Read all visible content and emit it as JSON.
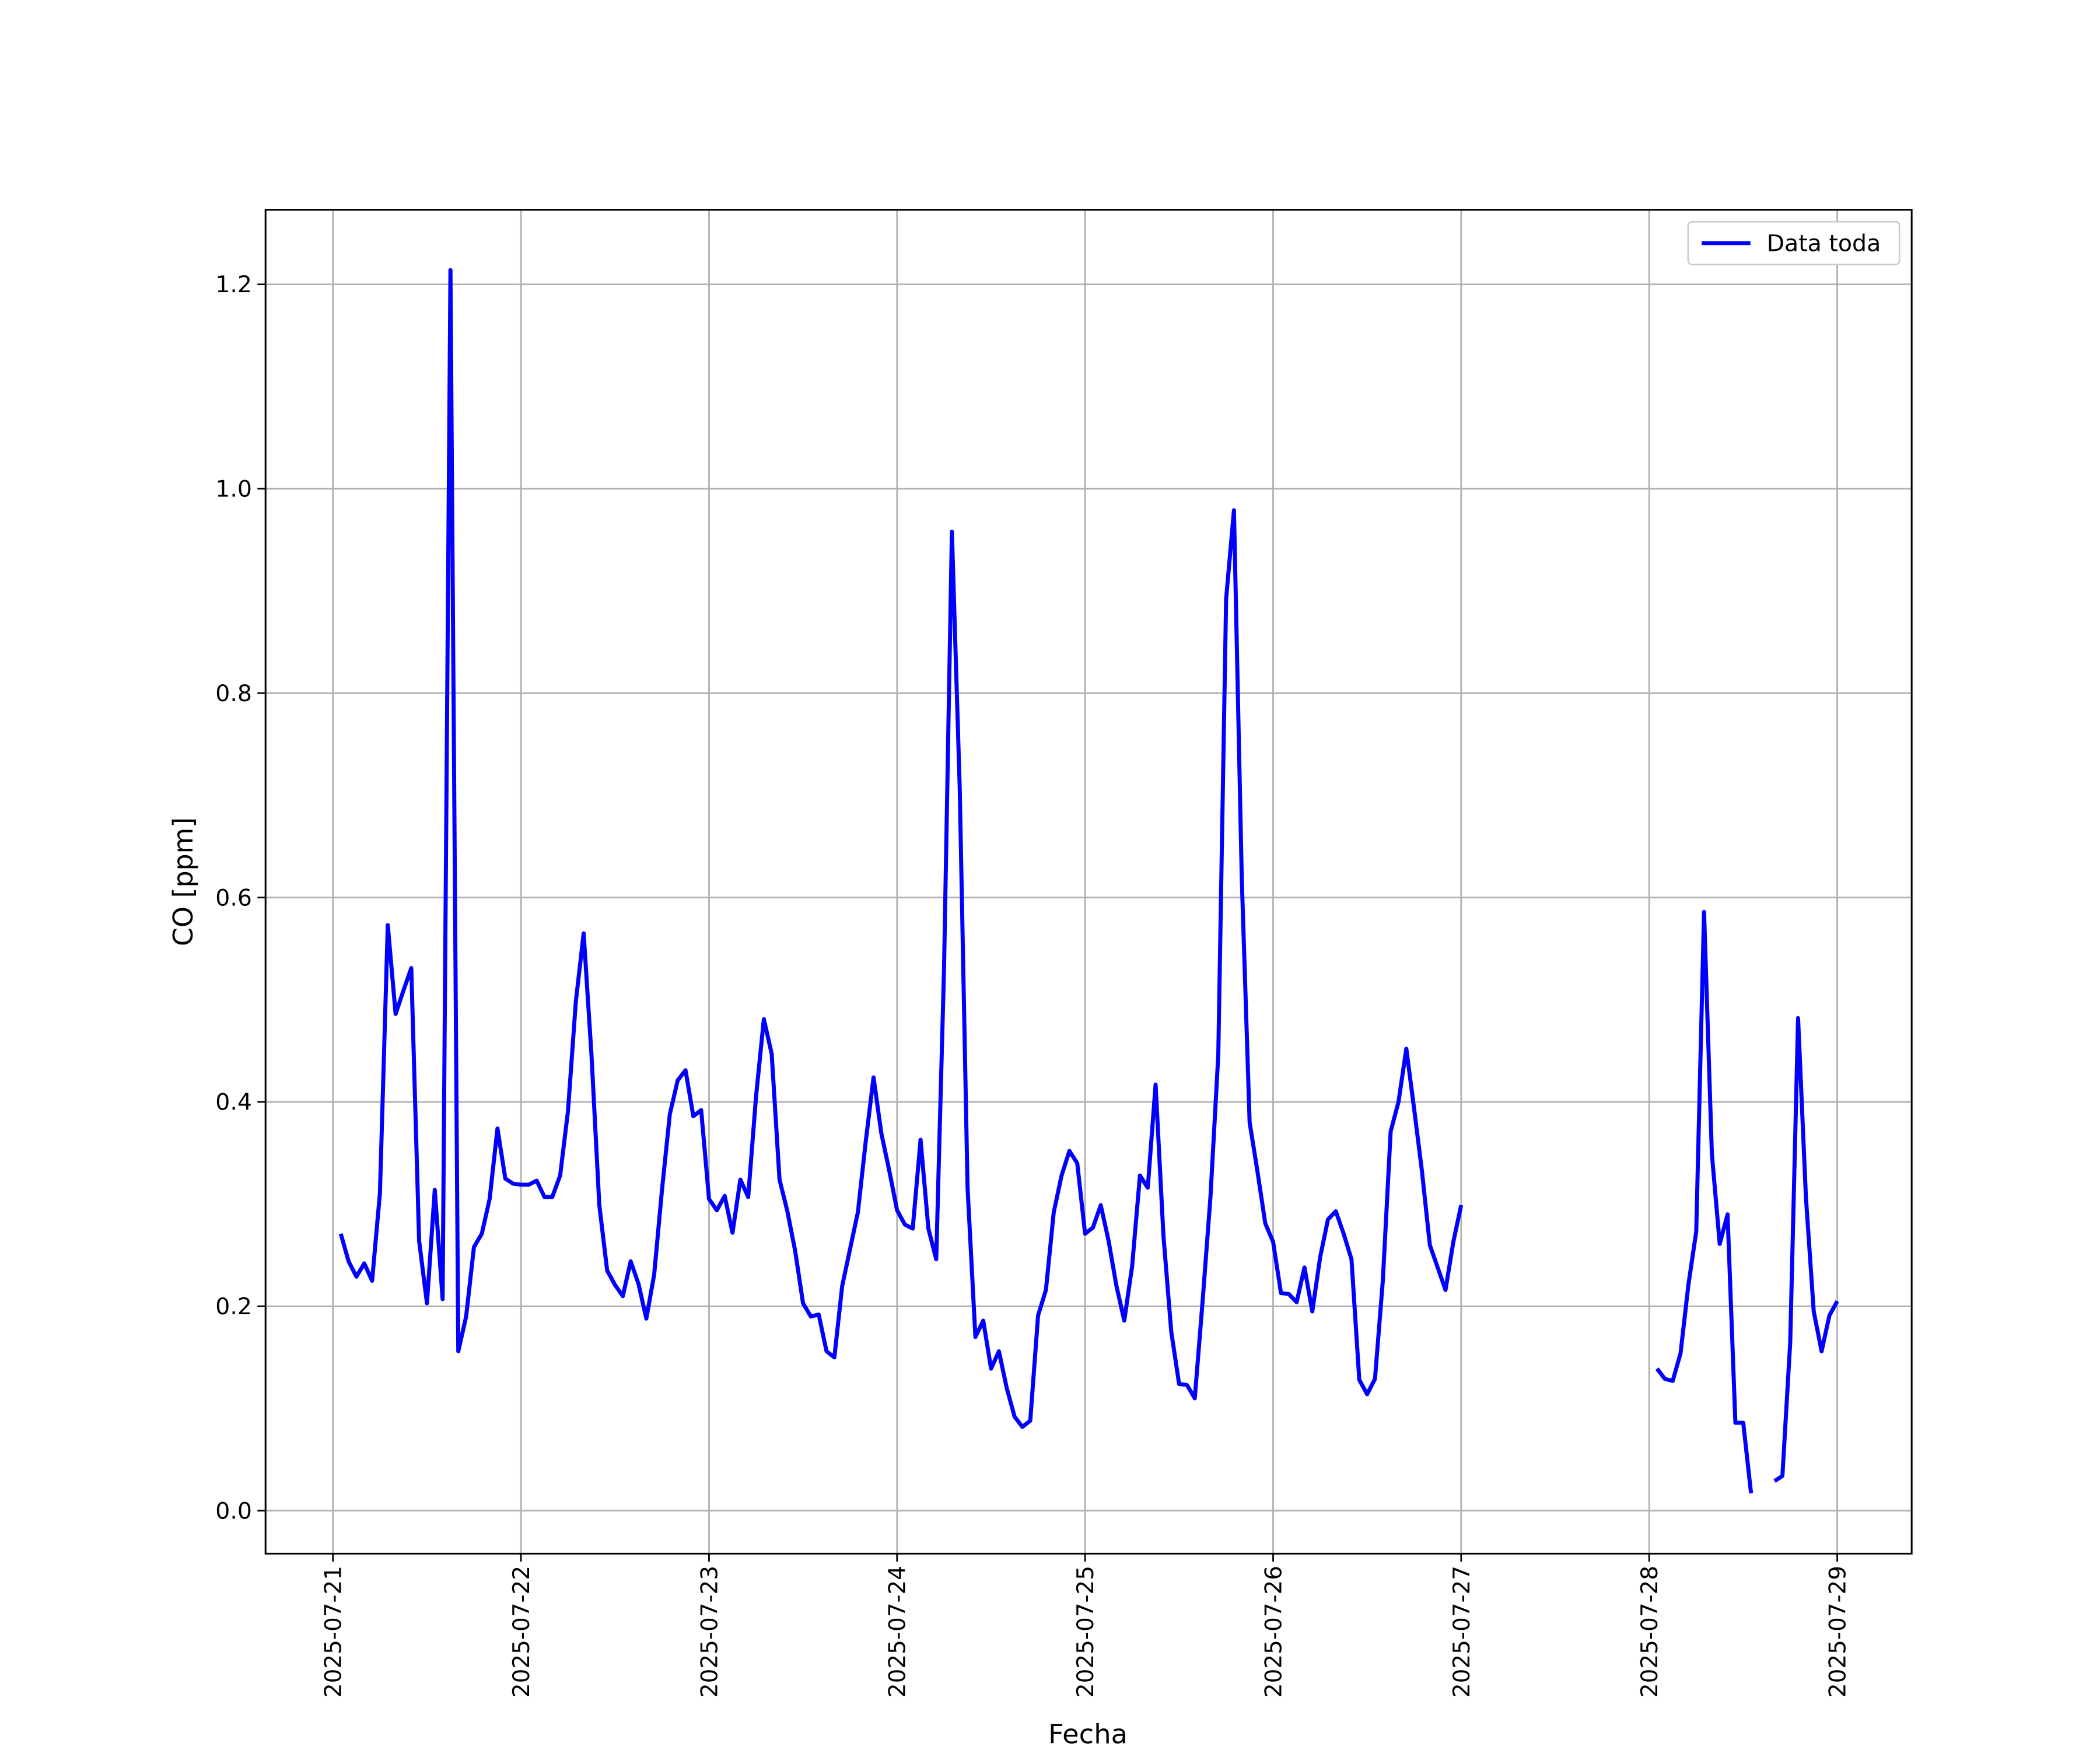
{
  "chart_data": {
    "type": "line",
    "xlabel": "Fecha",
    "ylabel": "CO [ppm]",
    "x": [
      1,
      2,
      3,
      4,
      5,
      6,
      7,
      8,
      9,
      10,
      11,
      12,
      13,
      14,
      15,
      16,
      17,
      18,
      19,
      20,
      21,
      22,
      23,
      24,
      25,
      26,
      27,
      28,
      29,
      30,
      31,
      32,
      33,
      34,
      35,
      36,
      37,
      38,
      39,
      40,
      41,
      42,
      43,
      44,
      45,
      46,
      47,
      48,
      49,
      50,
      51,
      52,
      53,
      54,
      55,
      56,
      57,
      58,
      59,
      60,
      61,
      62,
      63,
      64,
      65,
      66,
      67,
      68,
      69,
      70,
      71,
      72,
      73,
      74,
      75,
      76,
      77,
      78,
      79,
      80,
      81,
      82,
      83,
      84,
      85,
      86,
      87,
      88,
      89,
      90,
      91,
      92,
      93,
      94,
      95,
      96,
      97,
      98,
      99,
      100,
      101,
      102,
      103,
      104,
      105,
      106,
      107,
      108,
      109,
      110,
      111,
      112,
      113,
      114,
      115,
      116,
      117,
      118,
      119,
      120,
      121,
      122,
      123,
      124,
      125,
      126,
      127,
      128,
      129,
      130,
      131,
      132,
      133,
      134,
      135,
      136,
      137,
      138,
      139,
      140,
      141,
      142,
      143,
      144,
      145,
      169,
      170,
      171,
      172,
      173,
      174,
      175,
      176,
      177,
      178,
      179,
      180,
      181,
      182,
      184,
      185,
      186,
      187,
      188,
      189,
      190,
      191,
      192
    ],
    "series": [
      {
        "name": "Data toda",
        "color": "#0000ff",
        "values": [
          0.271,
          0.244,
          0.229,
          0.242,
          0.225,
          0.311,
          0.573,
          0.486,
          0.509,
          0.531,
          0.264,
          0.203,
          0.314,
          0.207,
          1.214,
          0.156,
          0.19,
          0.258,
          0.271,
          0.305,
          0.374,
          0.325,
          0.32,
          0.319,
          0.319,
          0.323,
          0.307,
          0.307,
          0.328,
          0.391,
          0.498,
          0.565,
          0.446,
          0.299,
          0.235,
          0.221,
          0.21,
          0.244,
          0.222,
          0.188,
          0.231,
          0.314,
          0.388,
          0.421,
          0.431,
          0.386,
          0.392,
          0.305,
          0.294,
          0.308,
          0.272,
          0.324,
          0.307,
          0.405,
          0.481,
          0.447,
          0.324,
          0.293,
          0.254,
          0.203,
          0.19,
          0.192,
          0.156,
          0.15,
          0.22,
          0.256,
          0.292,
          0.361,
          0.424,
          0.369,
          0.333,
          0.294,
          0.28,
          0.276,
          0.363,
          0.276,
          0.246,
          0.531,
          0.958,
          0.707,
          0.316,
          0.17,
          0.186,
          0.139,
          0.156,
          0.12,
          0.092,
          0.082,
          0.088,
          0.191,
          0.216,
          0.292,
          0.328,
          0.352,
          0.34,
          0.271,
          0.277,
          0.299,
          0.264,
          0.22,
          0.186,
          0.239,
          0.328,
          0.316,
          0.417,
          0.269,
          0.175,
          0.124,
          0.123,
          0.11,
          0.205,
          0.307,
          0.446,
          0.892,
          0.979,
          0.618,
          0.38,
          0.332,
          0.281,
          0.263,
          0.213,
          0.212,
          0.204,
          0.238,
          0.195,
          0.248,
          0.285,
          0.293,
          0.271,
          0.246,
          0.128,
          0.114,
          0.129,
          0.225,
          0.371,
          0.4,
          0.452,
          0.393,
          0.332,
          0.26,
          0.238,
          0.216,
          0.263,
          0.299,
          null,
          0.139,
          0.129,
          0.127,
          0.154,
          0.221,
          0.273,
          0.586,
          0.349,
          0.261,
          0.29,
          0.086,
          0.086,
          0.017,
          null,
          0.029,
          0.034,
          0.165,
          0.482,
          0.307,
          0.195,
          0.156,
          0.191,
          0.205
        ]
      }
    ],
    "xlim": [
      -8.6,
      201.5
    ],
    "xticks": [
      {
        "value": 0,
        "label": "2025-07-21"
      },
      {
        "value": 24,
        "label": "2025-07-22"
      },
      {
        "value": 48,
        "label": "2025-07-23"
      },
      {
        "value": 72,
        "label": "2025-07-24"
      },
      {
        "value": 96,
        "label": "2025-07-25"
      },
      {
        "value": 120,
        "label": "2025-07-26"
      },
      {
        "value": 144,
        "label": "2025-07-27"
      },
      {
        "value": 168,
        "label": "2025-07-28"
      },
      {
        "value": 192,
        "label": "2025-07-29"
      }
    ],
    "ylim": [
      -0.042,
      1.273
    ],
    "yticks": [
      {
        "value": 0,
        "label": "0.0"
      },
      0.2,
      0.4,
      0.6,
      0.8,
      {
        "value": 1,
        "label": "1.0"
      },
      1.2
    ],
    "grid": true,
    "legend": "upper right"
  }
}
